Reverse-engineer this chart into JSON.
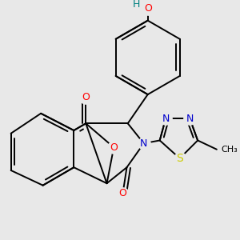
{
  "bg_color": "#e8e8e8",
  "bond_color": "#000000",
  "bond_width": 1.4,
  "figsize": [
    3.0,
    3.0
  ],
  "dpi": 100,
  "atom_colors": {
    "O": "#ff0000",
    "N": "#0000cc",
    "S": "#cccc00",
    "H_teal": "#008080",
    "C": "#000000"
  },
  "font_size": 9
}
